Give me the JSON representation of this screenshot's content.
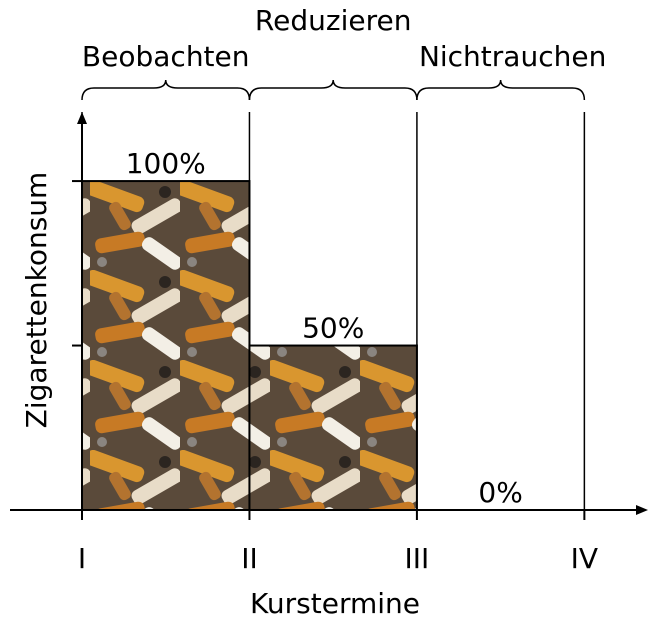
{
  "chart_data": {
    "type": "histogram",
    "bins": [
      1,
      2,
      3,
      4
    ],
    "values": [
      100,
      50,
      0
    ],
    "value_labels": [
      "100%",
      "50%",
      "0%"
    ],
    "phases": [
      "Beobachten",
      "Reduzieren",
      "Nichtrauchen"
    ],
    "xlabel": "Kurstermine",
    "ylabel": "Zigarettenkonsum",
    "xlim": [
      0.57,
      4.38
    ],
    "ylim": [
      0,
      121
    ],
    "xticks": [
      {
        "value": 1,
        "label": "I"
      },
      {
        "value": 2,
        "label": "II"
      },
      {
        "value": 3,
        "label": "III"
      },
      {
        "value": 4,
        "label": "IV"
      }
    ],
    "yticks": [
      50,
      100
    ],
    "grid": true
  }
}
